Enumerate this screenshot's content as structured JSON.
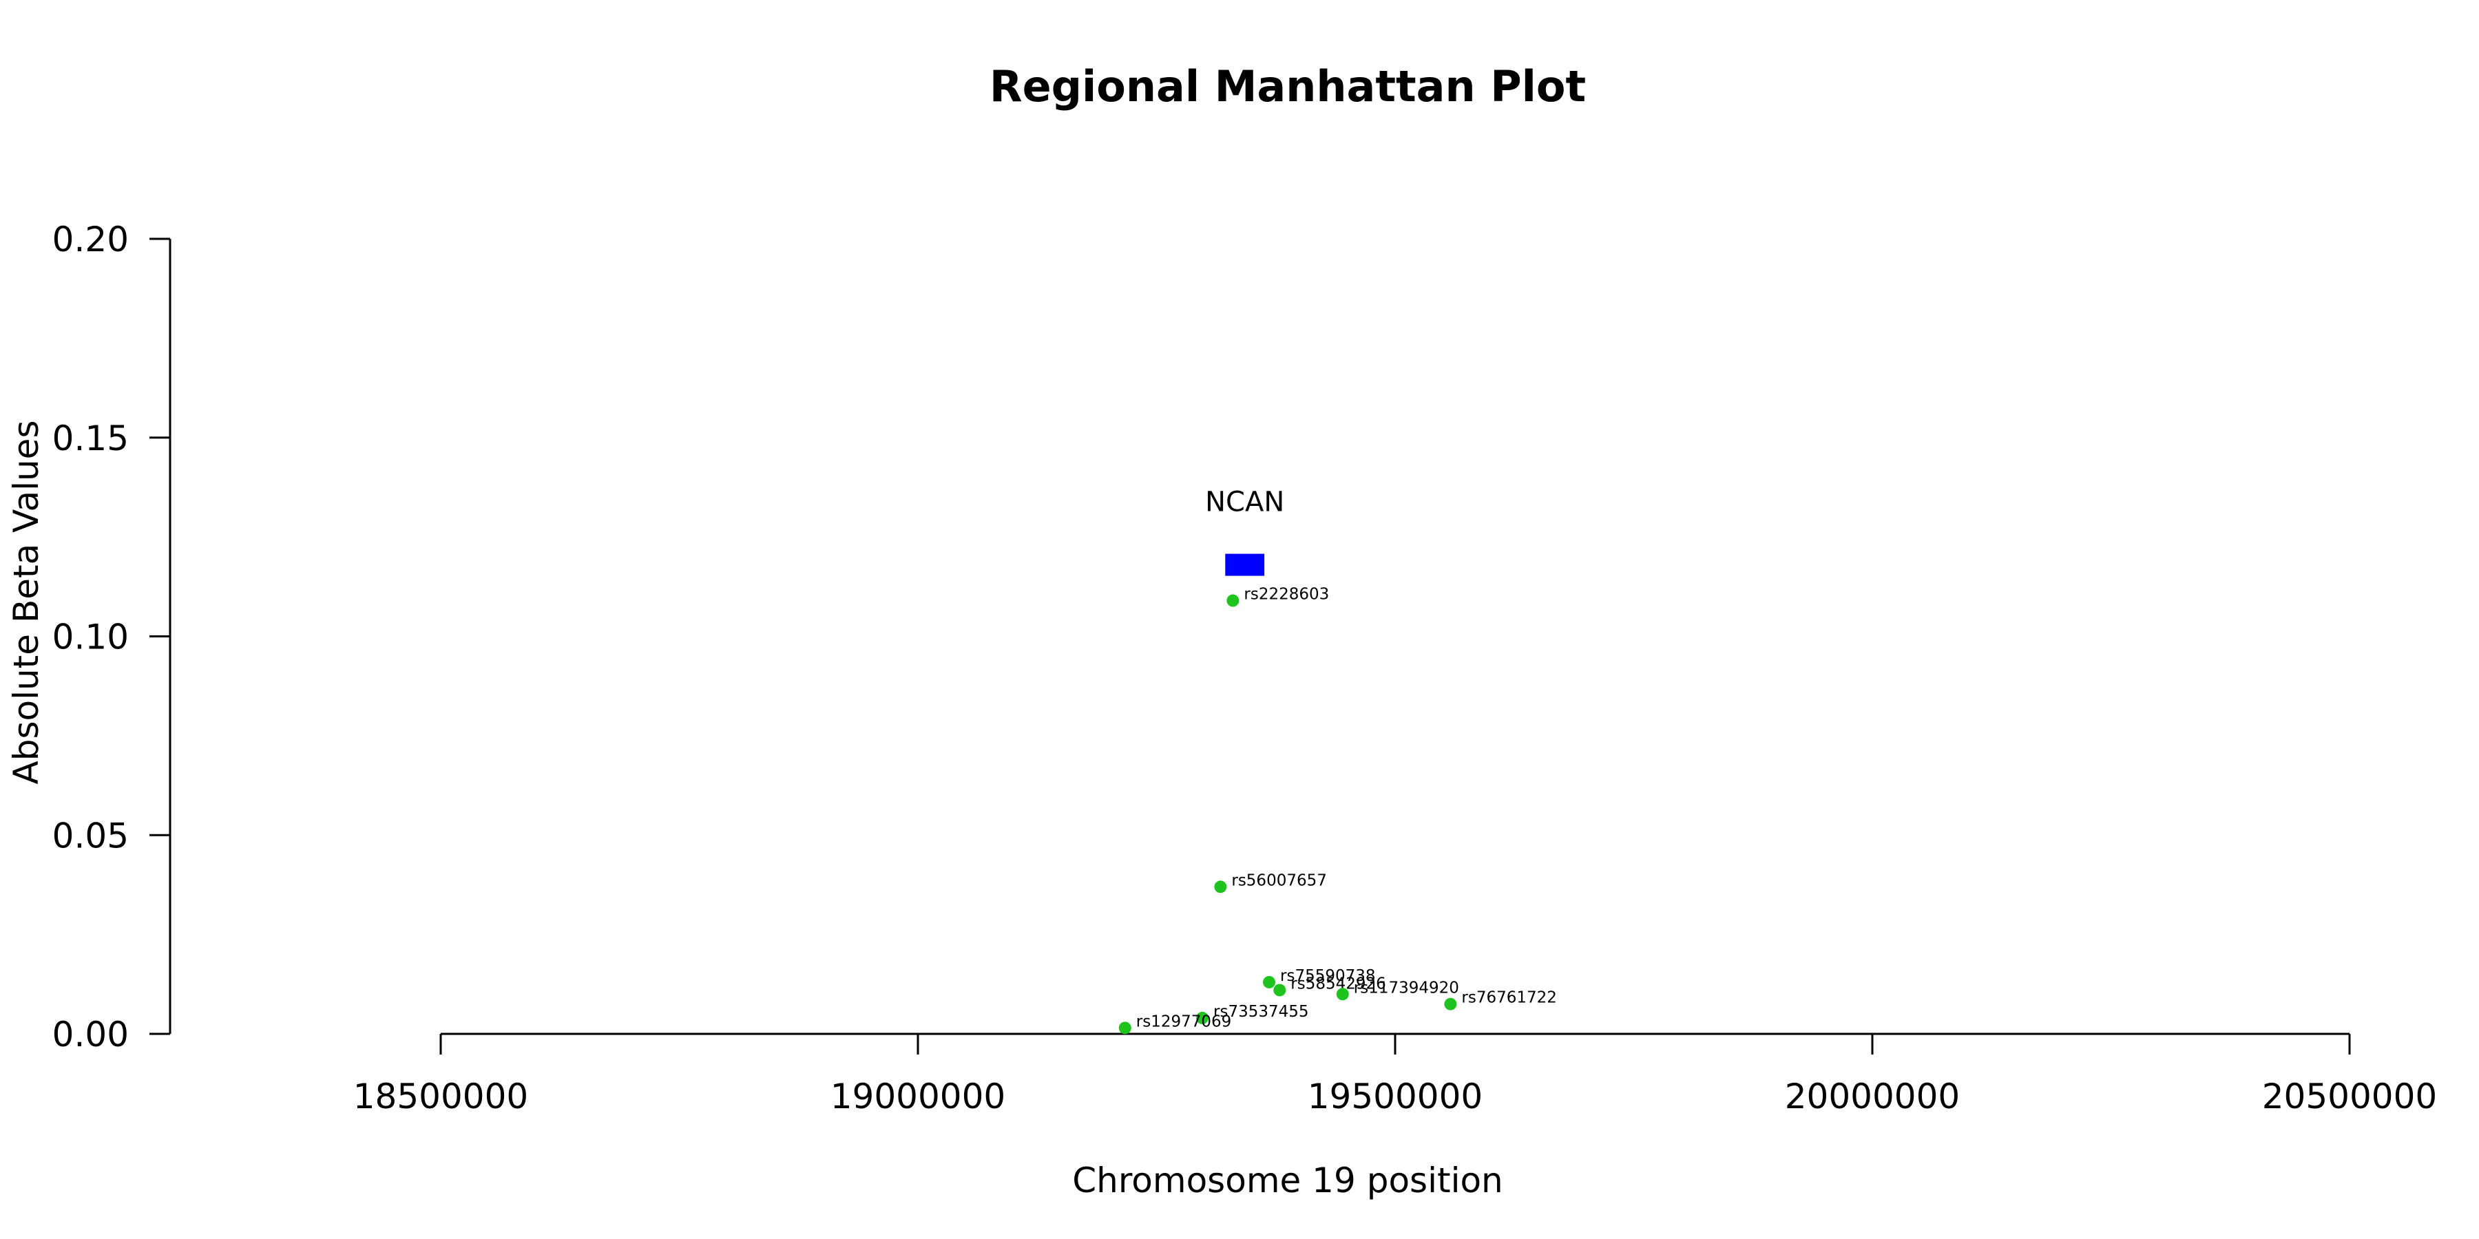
{
  "chart_data": {
    "type": "scatter",
    "title": "Regional Manhattan Plot",
    "xlabel": "Chromosome 19 position",
    "ylabel": "Absolute Beta Values",
    "xlim": [
      18500000,
      20500000
    ],
    "ylim": [
      0,
      0.2
    ],
    "x_ticks": [
      18500000,
      19000000,
      19500000,
      20000000,
      20500000
    ],
    "y_ticks": [
      0.0,
      0.05,
      0.1,
      0.15,
      0.2
    ],
    "x_tick_labels": [
      "18500000",
      "19000000",
      "19500000",
      "20000000",
      "20500000"
    ],
    "y_tick_labels": [
      "0.00",
      "0.05",
      "0.10",
      "0.15",
      "0.20"
    ],
    "grid": false,
    "point_color": "#1ec31e",
    "points": [
      {
        "label": "rs2228603",
        "x": 19330000,
        "y": 0.109
      },
      {
        "label": "rs56007657",
        "x": 19317000,
        "y": 0.037
      },
      {
        "label": "rs75590738",
        "x": 19368000,
        "y": 0.013
      },
      {
        "label": "rs58542926",
        "x": 19379000,
        "y": 0.011
      },
      {
        "label": "rs117394920",
        "x": 19445000,
        "y": 0.01
      },
      {
        "label": "rs76761722",
        "x": 19558000,
        "y": 0.0075
      },
      {
        "label": "rs73537455",
        "x": 19298000,
        "y": 0.004
      },
      {
        "label": "rs12977069",
        "x": 19217000,
        "y": 0.0015
      }
    ],
    "genes": [
      {
        "name": "NCAN",
        "start": 19322000,
        "end": 19363000,
        "y": 0.118,
        "color": "#0000ff"
      }
    ]
  }
}
